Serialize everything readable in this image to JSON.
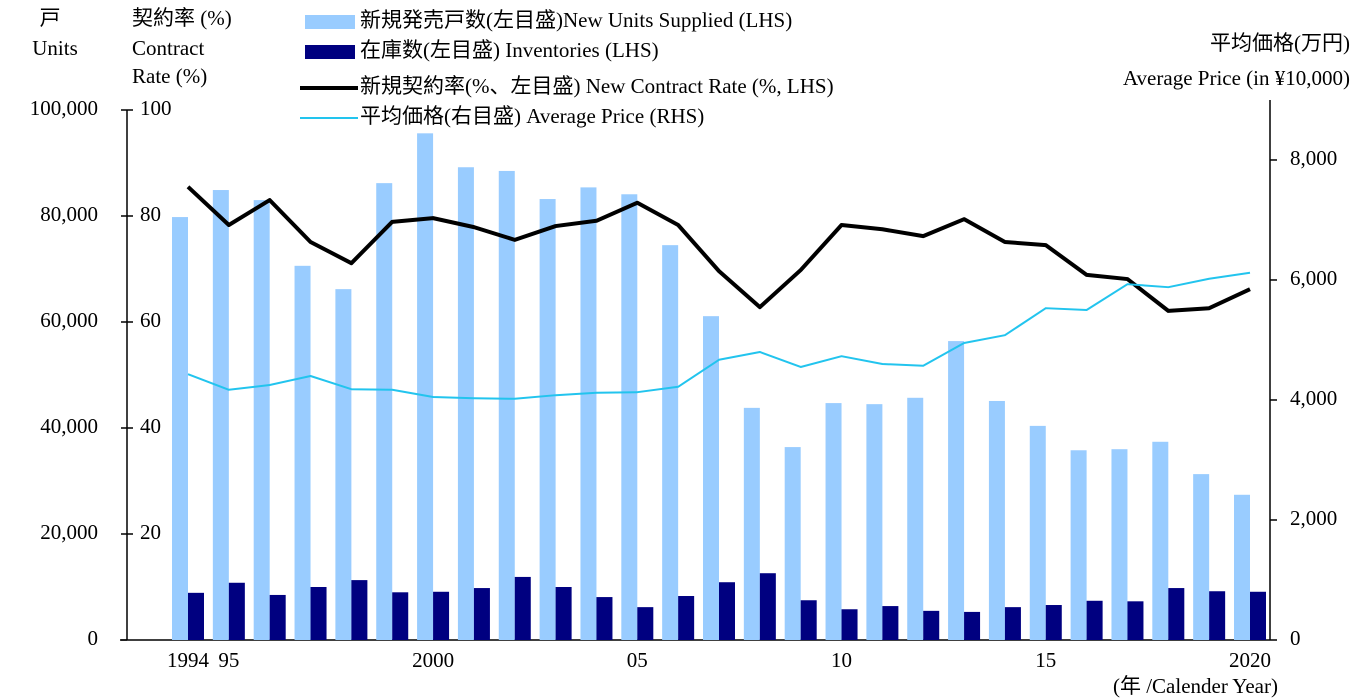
{
  "chart_data": {
    "type": "bar_line",
    "left_axis_title": [
      "戸",
      "Units"
    ],
    "rate_axis_title": [
      "契約率 (%)",
      "Contract",
      "Rate (%)"
    ],
    "right_axis_title": [
      "平均価格(万円)",
      "Average Price (in ¥10,000)"
    ],
    "x_axis_title": "(年 /Calender Year)",
    "categories": [
      "1994",
      "95",
      null,
      null,
      null,
      null,
      "2000",
      null,
      null,
      null,
      null,
      "05",
      null,
      null,
      null,
      null,
      "10",
      null,
      null,
      null,
      null,
      "15",
      null,
      null,
      null,
      null,
      "2020"
    ],
    "series": [
      {
        "name": "新規発売戸数(左目盛)New Units Supplied (LHS)",
        "type": "bar",
        "axis": "y",
        "color": "#99ccff",
        "values": [
          79800,
          84900,
          83000,
          70600,
          66200,
          86200,
          95600,
          89200,
          88500,
          83200,
          85400,
          84100,
          74500,
          61100,
          43800,
          36400,
          44700,
          44500,
          45700,
          56400,
          45100,
          40400,
          35800,
          36000,
          37400,
          31300,
          27400
        ]
      },
      {
        "name": "在庫数(左目盛) Inventories (LHS)",
        "type": "bar",
        "axis": "y",
        "color": "#000080",
        "values": [
          8900,
          10800,
          8500,
          10000,
          11300,
          9000,
          9100,
          9800,
          11900,
          10000,
          8100,
          6200,
          8300,
          10900,
          12600,
          7500,
          5800,
          6400,
          5500,
          5300,
          6200,
          6600,
          7400,
          7300,
          9800,
          9200,
          9100
        ]
      },
      {
        "name": "新規契約率(%、左目盛) New Contract Rate (%, LHS)",
        "type": "line",
        "axis": "y3",
        "color": "#000000",
        "values": [
          85.5,
          78.3,
          83.0,
          75.1,
          71.1,
          78.9,
          79.6,
          77.9,
          75.5,
          78.1,
          79.1,
          82.5,
          78.3,
          69.6,
          62.8,
          69.8,
          78.3,
          77.5,
          76.2,
          79.4,
          75.1,
          74.5,
          68.9,
          68.1,
          62.1,
          62.6,
          66.2
        ]
      },
      {
        "name": "平均価格(右目盛) Average Price (RHS)",
        "type": "line",
        "axis": "y2",
        "color": "#22c4ee",
        "values": [
          4430,
          4170,
          4250,
          4400,
          4180,
          4170,
          4050,
          4030,
          4020,
          4080,
          4120,
          4130,
          4220,
          4670,
          4800,
          4550,
          4730,
          4600,
          4570,
          4950,
          5080,
          5530,
          5500,
          5930,
          5880,
          6020,
          6120
        ]
      }
    ],
    "ylim": [
      0,
      100000
    ],
    "yticks": [
      0,
      {
        "value": 20000,
        "label": "20,000"
      },
      {
        "value": 40000,
        "label": "40,000"
      },
      {
        "value": 60000,
        "label": "60,000"
      },
      {
        "value": 80000,
        "label": "80,000"
      },
      {
        "value": 100000,
        "label": "100,000"
      }
    ],
    "y3lim": [
      0,
      100
    ],
    "y3ticks": [
      20,
      40,
      60,
      80,
      100
    ],
    "y2lim": [
      0,
      8833
    ],
    "y2ticks": [
      0,
      {
        "value": 2000,
        "label": "2,000"
      },
      {
        "value": 4000,
        "label": "4,000"
      },
      {
        "value": 6000,
        "label": "6,000"
      },
      {
        "value": 8000,
        "label": "8,000"
      }
    ]
  }
}
